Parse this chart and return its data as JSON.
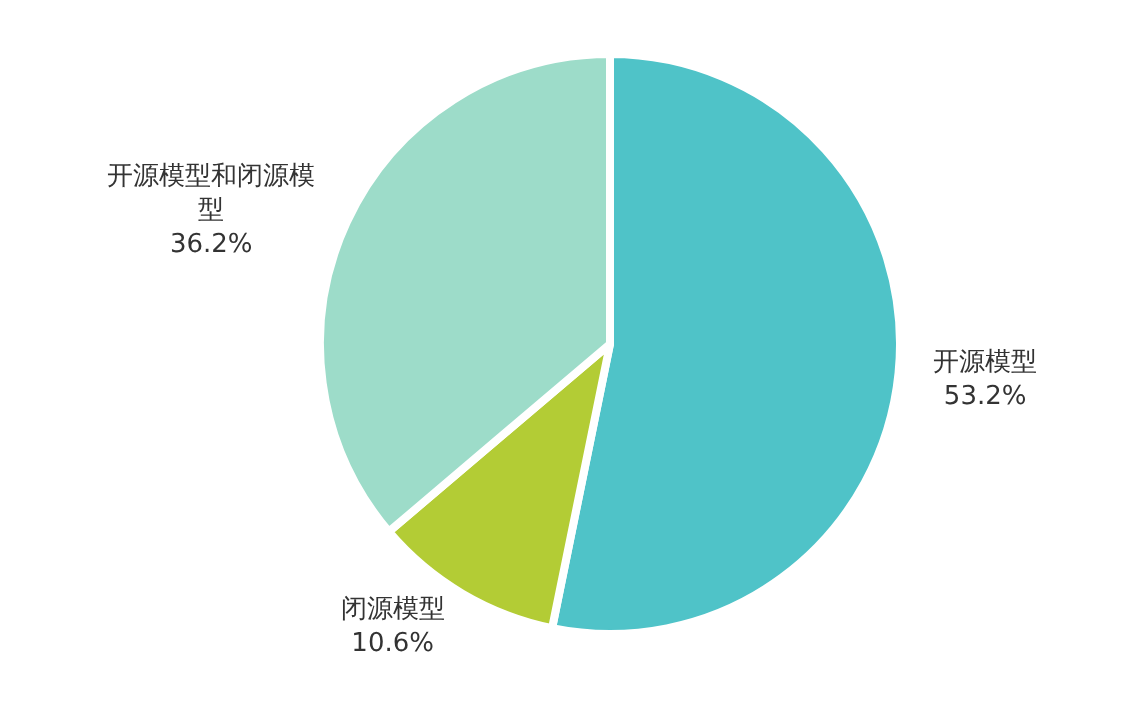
{
  "chart_data": {
    "type": "pie",
    "categories": [
      "开源模型",
      "闭源模型",
      "开源模型和闭源模型"
    ],
    "values": [
      53.2,
      10.6,
      36.2
    ],
    "value_labels": [
      "53.2%",
      "10.6%",
      "36.2%"
    ],
    "colors": [
      "#4fc3c8",
      "#b3cc35",
      "#9ddcc9"
    ]
  }
}
